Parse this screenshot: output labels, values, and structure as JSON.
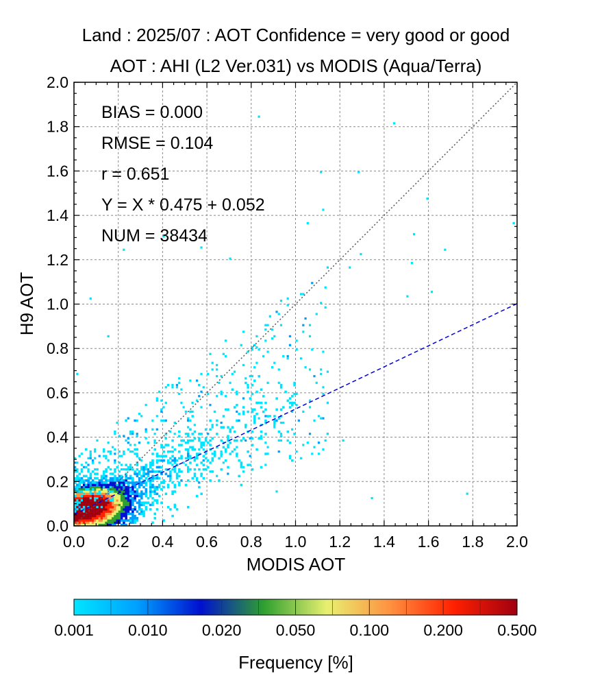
{
  "chart_data": {
    "type": "heatmap",
    "title": "Land  :  2025/07 :  AOT Confidence = very good or good",
    "subtitle": "AOT : AHI (L2 Ver.031) vs MODIS (Aqua/Terra)",
    "xlabel": "MODIS AOT",
    "ylabel": "H9 AOT",
    "xlim": [
      0.0,
      2.0
    ],
    "ylim": [
      0.0,
      2.0
    ],
    "xticks": [
      "0.0",
      "0.2",
      "0.4",
      "0.6",
      "0.8",
      "1.0",
      "1.2",
      "1.4",
      "1.6",
      "1.8",
      "2.0"
    ],
    "yticks": [
      "0.0",
      "0.2",
      "0.4",
      "0.6",
      "0.8",
      "1.0",
      "1.2",
      "1.4",
      "1.6",
      "1.8",
      "2.0"
    ],
    "grid": true,
    "stats": {
      "bias": "BIAS = 0.000",
      "rmse": "RMSE = 0.104",
      "r": "r = 0.651",
      "fit": "Y = X * 0.475 + 0.052",
      "num": "NUM = 38434"
    },
    "one_to_one_line": {
      "slope": 1.0,
      "intercept": 0.0,
      "color": "#555555",
      "style": "dotted"
    },
    "regression_line": {
      "slope": 0.475,
      "intercept": 0.052,
      "color": "#0000dd",
      "style": "dashed"
    },
    "density_peak": {
      "x": 0.05,
      "y": 0.08
    },
    "colorbar": {
      "label": "Frequency [%]",
      "tick_labels": [
        "0.001",
        "0.010",
        "0.020",
        "0.050",
        "0.100",
        "0.200",
        "0.500"
      ],
      "colors": [
        "#00e5ff",
        "#00a0ff",
        "#0010d0",
        "#2fa030",
        "#e8f070",
        "#ff9040",
        "#ff2000",
        "#a00010"
      ]
    },
    "outlier_points": [
      [
        1.44,
        1.81
      ],
      [
        0.83,
        1.84
      ],
      [
        1.28,
        1.59
      ],
      [
        1.11,
        1.59
      ],
      [
        1.59,
        1.47
      ],
      [
        1.05,
        1.36
      ],
      [
        1.53,
        1.31
      ],
      [
        1.67,
        1.24
      ],
      [
        1.98,
        1.36
      ],
      [
        1.24,
        1.17
      ],
      [
        1.29,
        1.22
      ],
      [
        1.52,
        1.19
      ],
      [
        1.5,
        1.03
      ],
      [
        1.61,
        1.05
      ],
      [
        1.21,
        0.38
      ],
      [
        1.77,
        0.14
      ],
      [
        1.34,
        0.12
      ],
      [
        0.91,
        0.15
      ],
      [
        1.12,
        1.42
      ],
      [
        0.7,
        1.2
      ],
      [
        0.58,
        1.25
      ],
      [
        0.4,
        1.3
      ],
      [
        0.22,
        1.24
      ],
      [
        0.07,
        1.02
      ],
      [
        0.01,
        0.68
      ],
      [
        0.15,
        0.85
      ],
      [
        0.98,
        0.55
      ],
      [
        0.92,
        0.7
      ],
      [
        1.09,
        0.95
      ]
    ]
  }
}
